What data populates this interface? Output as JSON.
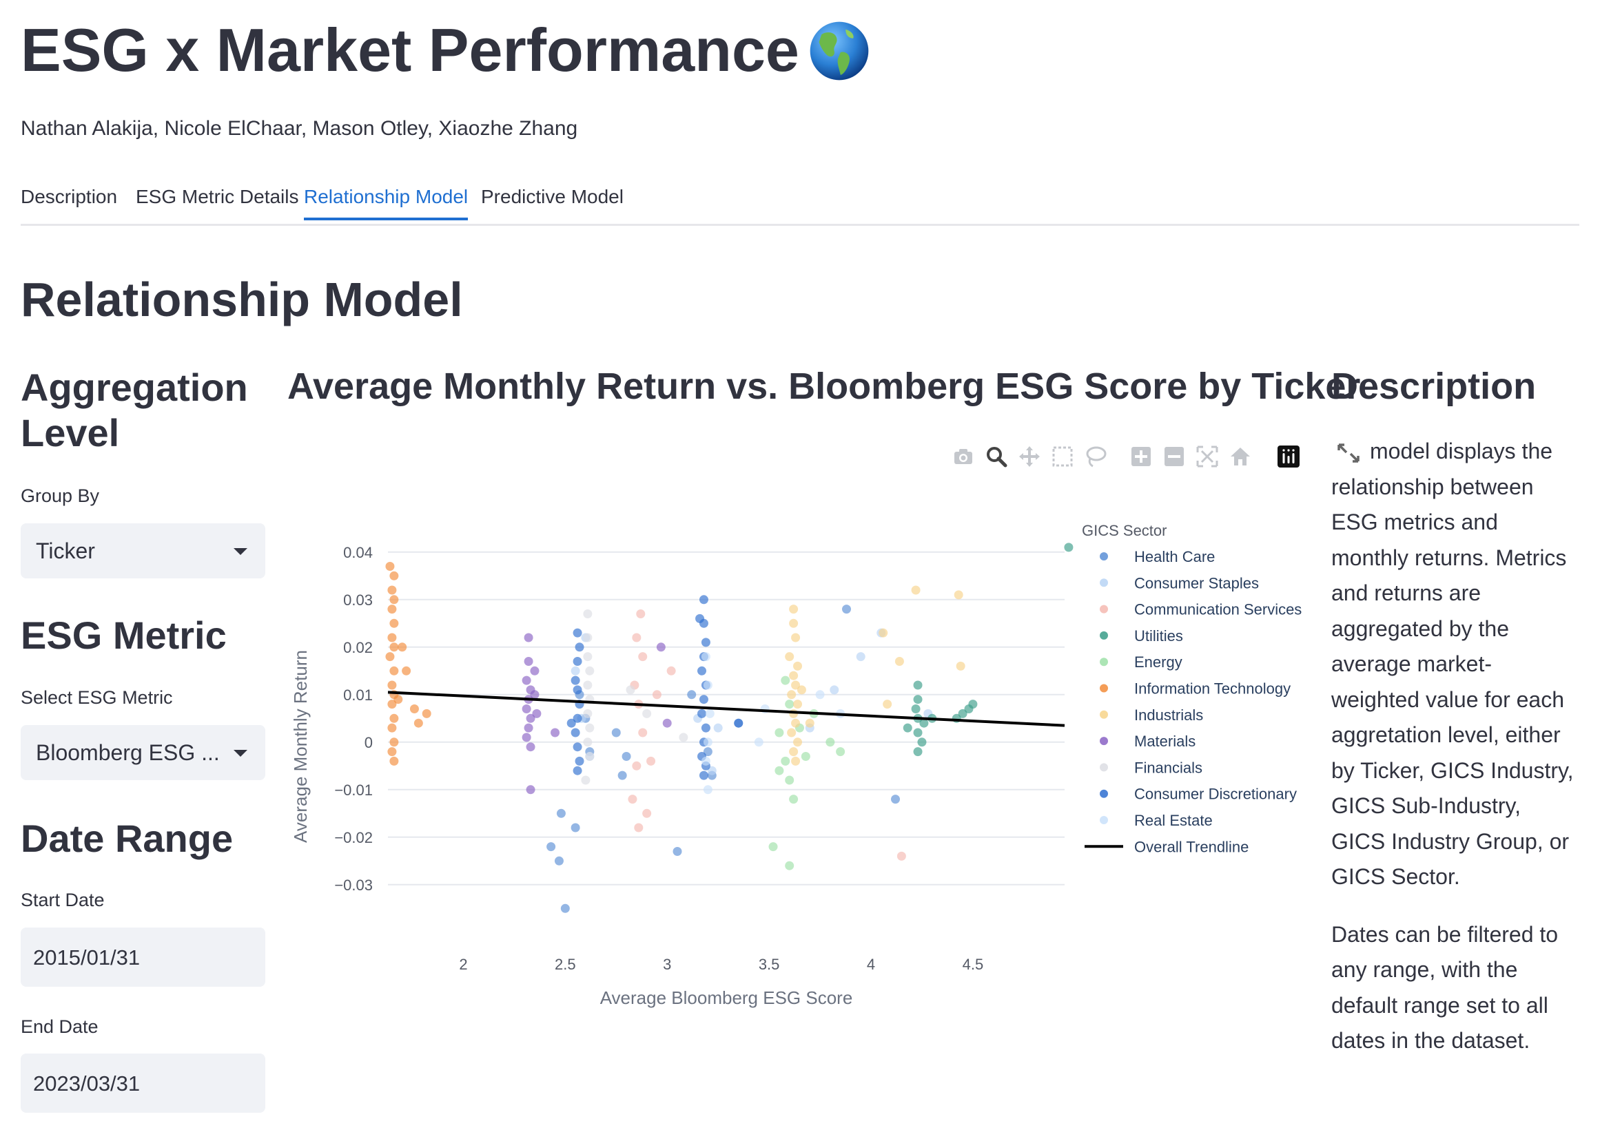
{
  "app": {
    "title": "ESG x Market Performance",
    "authors": "Nathan Alakija, Nicole ElChaar, Mason Otley, Xiaozhe Zhang"
  },
  "tabs": [
    {
      "label": "Description",
      "active": false
    },
    {
      "label": "ESG Metric Details",
      "active": false
    },
    {
      "label": "Relationship Model",
      "active": true
    },
    {
      "label": "Predictive Model",
      "active": false
    }
  ],
  "page": {
    "heading": "Relationship Model"
  },
  "sidebar": {
    "aggregation_heading": "Aggregation Level",
    "group_by_label": "Group By",
    "group_by_value": "Ticker",
    "esg_heading": "ESG Metric",
    "esg_label": "Select ESG Metric",
    "esg_value": "Bloomberg ESG ...",
    "date_heading": "Date Range",
    "start_label": "Start Date",
    "start_value": "2015/01/31",
    "end_label": "End Date",
    "end_value": "2023/03/31"
  },
  "description": {
    "heading": "Description",
    "p1": "model displays the relationship between ESG metrics and monthly returns. Metrics and returns are aggregated by the average market-weighted value for each aggretation level, either by Ticker, GICS Industry, GICS Sub-Industry, GICS Industry Group, or GICS Sector.",
    "p2": "Dates can be filtered to any range, with the default range set to all dates in the dataset."
  },
  "colors": {
    "accent": "#1f6fd1",
    "text": "#31333f",
    "input_bg": "#f0f2f6"
  },
  "chart_data": {
    "type": "scatter",
    "title": "Average Monthly Return vs. Bloomberg ESG Score by Ticker",
    "xlabel": "Average Bloomberg ESG Score",
    "ylabel": "Average Monthly Return",
    "xlim": [
      1.63,
      4.95
    ],
    "ylim": [
      -0.038,
      0.042
    ],
    "x_ticks": [
      2,
      2.5,
      3,
      3.5,
      4,
      4.5
    ],
    "y_ticks": [
      0.04,
      0.03,
      0.02,
      0.01,
      0,
      -0.01,
      -0.02,
      -0.03
    ],
    "y_tick_labels": [
      "0.04",
      "0.03",
      "0.02",
      "0.01",
      "0",
      "−0.01",
      "−0.02",
      "−0.03"
    ],
    "grid": true,
    "legend_title": "GICS Sector",
    "legend_position": "right",
    "series": [
      {
        "name": "Health Care",
        "color": "#5b8fd6",
        "points": [
          [
            2.48,
            -0.015
          ],
          [
            2.55,
            -0.018
          ],
          [
            2.43,
            -0.022
          ],
          [
            2.47,
            -0.025
          ],
          [
            2.5,
            -0.035
          ],
          [
            2.57,
            0.01
          ],
          [
            2.6,
            0.005
          ],
          [
            2.62,
            -0.002
          ],
          [
            2.75,
            0.002
          ],
          [
            2.8,
            -0.003
          ],
          [
            2.78,
            -0.007
          ],
          [
            3.05,
            -0.023
          ],
          [
            3.12,
            0.01
          ],
          [
            3.2,
            -0.002
          ],
          [
            3.22,
            -0.007
          ],
          [
            3.35,
            0.004
          ],
          [
            3.88,
            0.028
          ],
          [
            4.12,
            -0.012
          ]
        ]
      },
      {
        "name": "Consumer Staples",
        "color": "#b7d3f5",
        "points": [
          [
            2.58,
            0.005
          ],
          [
            2.62,
            -0.003
          ],
          [
            2.55,
            0.015
          ],
          [
            2.6,
            0.022
          ],
          [
            3.15,
            0.005
          ],
          [
            3.22,
            -0.006
          ],
          [
            3.25,
            0.003
          ],
          [
            3.7,
            0.003
          ],
          [
            3.82,
            0.011
          ],
          [
            3.95,
            0.018
          ],
          [
            4.05,
            0.023
          ],
          [
            4.28,
            0.006
          ]
        ]
      },
      {
        "name": "Communication Services",
        "color": "#f4b8b0",
        "points": [
          [
            2.84,
            0.012
          ],
          [
            2.86,
            0.008
          ],
          [
            2.88,
            0.002
          ],
          [
            2.85,
            -0.005
          ],
          [
            2.83,
            -0.012
          ],
          [
            2.86,
            -0.018
          ],
          [
            2.9,
            -0.015
          ],
          [
            2.87,
            0.027
          ],
          [
            2.85,
            0.022
          ],
          [
            2.88,
            0.018
          ],
          [
            2.95,
            0.01
          ],
          [
            2.92,
            -0.004
          ],
          [
            3.02,
            0.015
          ],
          [
            4.15,
            -0.024
          ]
        ]
      },
      {
        "name": "Utilities",
        "color": "#3a9c88",
        "points": [
          [
            4.23,
            0.002
          ],
          [
            4.23,
            0.005
          ],
          [
            4.23,
            0.009
          ],
          [
            4.23,
            0.012
          ],
          [
            4.23,
            -0.002
          ],
          [
            4.25,
            0.0
          ],
          [
            4.22,
            0.007
          ],
          [
            4.26,
            0.004
          ],
          [
            4.18,
            0.003
          ],
          [
            4.42,
            0.005
          ],
          [
            4.48,
            0.007
          ],
          [
            4.5,
            0.008
          ],
          [
            4.45,
            0.006
          ],
          [
            4.97,
            0.041
          ],
          [
            4.3,
            0.005
          ]
        ]
      },
      {
        "name": "Energy",
        "color": "#9ee0a8",
        "points": [
          [
            3.55,
            -0.006
          ],
          [
            3.58,
            -0.004
          ],
          [
            3.6,
            -0.008
          ],
          [
            3.62,
            -0.012
          ],
          [
            3.6,
            -0.026
          ],
          [
            3.52,
            -0.022
          ],
          [
            3.6,
            0.008
          ],
          [
            3.58,
            0.013
          ],
          [
            3.65,
            0.003
          ],
          [
            3.68,
            -0.003
          ],
          [
            3.72,
            0.006
          ],
          [
            3.8,
            0.0
          ],
          [
            3.85,
            -0.002
          ],
          [
            3.55,
            0.002
          ]
        ]
      },
      {
        "name": "Information Technology",
        "color": "#f28c3a",
        "points": [
          [
            1.64,
            0.037
          ],
          [
            1.66,
            0.035
          ],
          [
            1.65,
            0.032
          ],
          [
            1.66,
            0.03
          ],
          [
            1.65,
            0.028
          ],
          [
            1.66,
            0.025
          ],
          [
            1.65,
            0.022
          ],
          [
            1.66,
            0.02
          ],
          [
            1.64,
            0.018
          ],
          [
            1.66,
            0.015
          ],
          [
            1.65,
            0.012
          ],
          [
            1.66,
            0.01
          ],
          [
            1.65,
            0.008
          ],
          [
            1.66,
            0.005
          ],
          [
            1.65,
            0.003
          ],
          [
            1.66,
            0.0
          ],
          [
            1.65,
            -0.002
          ],
          [
            1.66,
            -0.004
          ],
          [
            1.7,
            0.02
          ],
          [
            1.72,
            0.015
          ],
          [
            1.76,
            0.007
          ],
          [
            1.78,
            0.004
          ],
          [
            1.82,
            0.006
          ],
          [
            1.68,
            0.009
          ]
        ]
      },
      {
        "name": "Industrials",
        "color": "#f7d38a",
        "points": [
          [
            3.62,
            0.028
          ],
          [
            3.62,
            0.025
          ],
          [
            3.63,
            0.022
          ],
          [
            3.6,
            0.018
          ],
          [
            3.64,
            0.016
          ],
          [
            3.62,
            0.014
          ],
          [
            3.63,
            0.012
          ],
          [
            3.61,
            0.01
          ],
          [
            3.64,
            0.008
          ],
          [
            3.62,
            0.006
          ],
          [
            3.63,
            0.004
          ],
          [
            3.61,
            0.002
          ],
          [
            3.64,
            0.0
          ],
          [
            3.62,
            -0.002
          ],
          [
            3.63,
            -0.004
          ],
          [
            3.66,
            0.011
          ],
          [
            3.7,
            0.004
          ],
          [
            4.08,
            0.008
          ],
          [
            4.14,
            0.017
          ],
          [
            4.22,
            0.032
          ],
          [
            4.43,
            0.031
          ],
          [
            4.44,
            0.016
          ],
          [
            4.06,
            0.023
          ]
        ]
      },
      {
        "name": "Materials",
        "color": "#8a63c4",
        "points": [
          [
            2.32,
            0.022
          ],
          [
            2.32,
            0.017
          ],
          [
            2.31,
            0.013
          ],
          [
            2.33,
            0.011
          ],
          [
            2.32,
            0.009
          ],
          [
            2.31,
            0.007
          ],
          [
            2.33,
            0.005
          ],
          [
            2.32,
            0.003
          ],
          [
            2.31,
            0.001
          ],
          [
            2.33,
            -0.001
          ],
          [
            2.35,
            0.01
          ],
          [
            2.35,
            0.015
          ],
          [
            2.33,
            -0.01
          ],
          [
            2.45,
            0.002
          ],
          [
            2.97,
            0.02
          ],
          [
            3.0,
            0.004
          ],
          [
            2.36,
            0.006
          ]
        ]
      },
      {
        "name": "Financials",
        "color": "#dcdde3",
        "points": [
          [
            2.61,
            0.027
          ],
          [
            2.61,
            0.022
          ],
          [
            2.61,
            0.018
          ],
          [
            2.62,
            0.015
          ],
          [
            2.61,
            0.012
          ],
          [
            2.62,
            0.009
          ],
          [
            2.61,
            0.006
          ],
          [
            2.62,
            0.003
          ],
          [
            2.61,
            0.0
          ],
          [
            2.62,
            -0.003
          ],
          [
            2.6,
            -0.008
          ],
          [
            2.82,
            0.011
          ],
          [
            2.9,
            0.006
          ],
          [
            3.08,
            0.001
          ]
        ]
      },
      {
        "name": "Consumer Discretionary",
        "color": "#2e6fd0",
        "points": [
          [
            3.18,
            0.03
          ],
          [
            3.18,
            0.025
          ],
          [
            3.19,
            0.021
          ],
          [
            3.18,
            0.018
          ],
          [
            3.17,
            0.015
          ],
          [
            3.19,
            0.012
          ],
          [
            3.18,
            0.009
          ],
          [
            3.17,
            0.006
          ],
          [
            3.19,
            0.003
          ],
          [
            3.18,
            0.0
          ],
          [
            3.17,
            -0.003
          ],
          [
            3.19,
            -0.005
          ],
          [
            3.18,
            -0.007
          ],
          [
            2.56,
            0.023
          ],
          [
            2.57,
            0.02
          ],
          [
            2.56,
            0.017
          ],
          [
            2.55,
            0.013
          ],
          [
            2.56,
            0.011
          ],
          [
            2.57,
            0.008
          ],
          [
            2.56,
            0.005
          ],
          [
            2.55,
            0.002
          ],
          [
            2.56,
            -0.001
          ],
          [
            2.57,
            -0.004
          ],
          [
            2.56,
            -0.006
          ],
          [
            2.53,
            0.004
          ],
          [
            3.16,
            0.026
          ],
          [
            3.35,
            0.004
          ]
        ]
      },
      {
        "name": "Real Estate",
        "color": "#c9e1fa",
        "points": [
          [
            3.19,
            0.018
          ],
          [
            3.2,
            0.012
          ],
          [
            3.21,
            0.006
          ],
          [
            3.2,
            0.0
          ],
          [
            3.19,
            -0.004
          ],
          [
            3.2,
            -0.01
          ],
          [
            3.48,
            0.007
          ],
          [
            3.75,
            0.01
          ],
          [
            3.85,
            0.006
          ],
          [
            3.45,
            0.0
          ]
        ]
      }
    ],
    "trendline": {
      "name": "Overall Trendline",
      "color": "#000000",
      "x": [
        1.63,
        4.95
      ],
      "y": [
        0.0105,
        0.0035
      ]
    }
  }
}
